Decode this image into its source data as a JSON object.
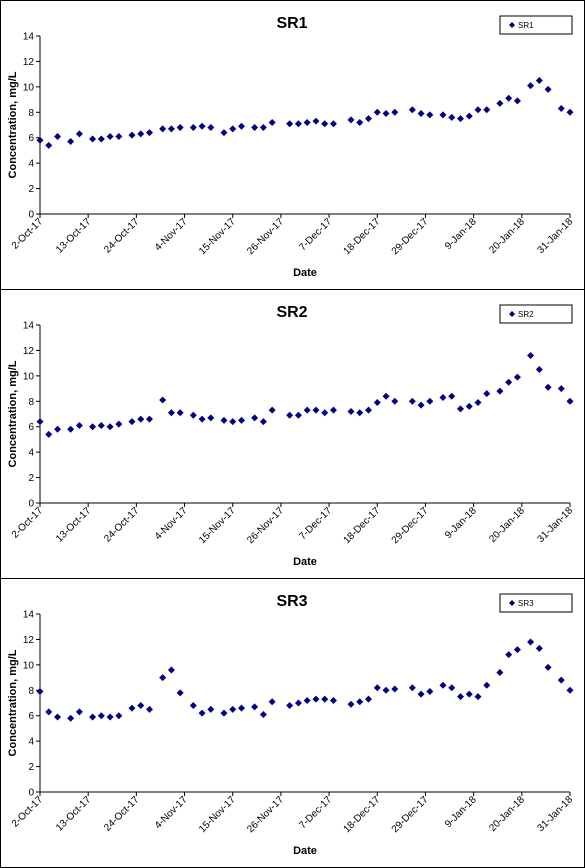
{
  "chart_data": [
    {
      "type": "scatter",
      "title": "SR1",
      "x_label": "Date",
      "y_label": "Concentration, mg/L",
      "x": [
        "2017-10-02",
        "2017-10-04",
        "2017-10-06",
        "2017-10-09",
        "2017-10-11",
        "2017-10-14",
        "2017-10-16",
        "2017-10-18",
        "2017-10-20",
        "2017-10-23",
        "2017-10-25",
        "2017-10-27",
        "2017-10-30",
        "2017-11-01",
        "2017-11-03",
        "2017-11-06",
        "2017-11-08",
        "2017-11-10",
        "2017-11-13",
        "2017-11-15",
        "2017-11-17",
        "2017-11-20",
        "2017-11-22",
        "2017-11-24",
        "2017-11-28",
        "2017-11-30",
        "2017-12-02",
        "2017-12-04",
        "2017-12-06",
        "2017-12-08",
        "2017-12-12",
        "2017-12-14",
        "2017-12-16",
        "2017-12-18",
        "2017-12-20",
        "2017-12-22",
        "2017-12-26",
        "2017-12-28",
        "2017-12-30",
        "2018-01-02",
        "2018-01-04",
        "2018-01-06",
        "2018-01-08",
        "2018-01-10",
        "2018-01-12",
        "2018-01-15",
        "2018-01-17",
        "2018-01-19",
        "2018-01-22",
        "2018-01-24",
        "2018-01-26",
        "2018-01-29",
        "2018-01-31"
      ],
      "series": [
        {
          "name": "SR1",
          "color": "#000080",
          "values": [
            5.8,
            5.4,
            6.1,
            5.7,
            6.3,
            5.9,
            5.9,
            6.1,
            6.1,
            6.2,
            6.3,
            6.4,
            6.7,
            6.7,
            6.8,
            6.8,
            6.9,
            6.8,
            6.4,
            6.7,
            6.9,
            6.8,
            6.8,
            7.2,
            7.1,
            7.1,
            7.2,
            7.3,
            7.1,
            7.1,
            7.4,
            7.2,
            7.5,
            8.0,
            7.9,
            8.0,
            8.2,
            7.9,
            7.8,
            7.8,
            7.6,
            7.5,
            7.7,
            8.2,
            8.2,
            8.7,
            9.1,
            8.9,
            10.1,
            10.5,
            9.8,
            8.3,
            8.0
          ]
        }
      ],
      "xlim": [
        "2017-10-02",
        "2018-01-31"
      ],
      "xticks": [
        {
          "value": "2017-10-02",
          "label": "2-Oct-17"
        },
        {
          "value": "2017-10-13",
          "label": "13-Oct-17"
        },
        {
          "value": "2017-10-24",
          "label": "24-Oct-17"
        },
        {
          "value": "2017-11-04",
          "label": "4-Nov-17"
        },
        {
          "value": "2017-11-15",
          "label": "15-Nov-17"
        },
        {
          "value": "2017-11-26",
          "label": "26-Nov-17"
        },
        {
          "value": "2017-12-07",
          "label": "7-Dec-17"
        },
        {
          "value": "2017-12-18",
          "label": "18-Dec-17"
        },
        {
          "value": "2017-12-29",
          "label": "29-Dec-17"
        },
        {
          "value": "2018-01-09",
          "label": "9-Jan-18"
        },
        {
          "value": "2018-01-20",
          "label": "20-Jan-18"
        },
        {
          "value": "2018-01-31",
          "label": "31-Jan-18"
        }
      ],
      "ylim": [
        0,
        14
      ],
      "yticks": [
        0,
        2,
        4,
        6,
        8,
        10,
        12,
        14
      ],
      "legend": "top-right"
    },
    {
      "type": "scatter",
      "title": "SR2",
      "x_label": "Date",
      "y_label": "Concentration, mg/L",
      "x": [
        "2017-10-02",
        "2017-10-04",
        "2017-10-06",
        "2017-10-09",
        "2017-10-11",
        "2017-10-14",
        "2017-10-16",
        "2017-10-18",
        "2017-10-20",
        "2017-10-23",
        "2017-10-25",
        "2017-10-27",
        "2017-10-30",
        "2017-11-01",
        "2017-11-03",
        "2017-11-06",
        "2017-11-08",
        "2017-11-10",
        "2017-11-13",
        "2017-11-15",
        "2017-11-17",
        "2017-11-20",
        "2017-11-22",
        "2017-11-24",
        "2017-11-28",
        "2017-11-30",
        "2017-12-02",
        "2017-12-04",
        "2017-12-06",
        "2017-12-08",
        "2017-12-12",
        "2017-12-14",
        "2017-12-16",
        "2017-12-18",
        "2017-12-20",
        "2017-12-22",
        "2017-12-26",
        "2017-12-28",
        "2017-12-30",
        "2018-01-02",
        "2018-01-04",
        "2018-01-06",
        "2018-01-08",
        "2018-01-10",
        "2018-01-12",
        "2018-01-15",
        "2018-01-17",
        "2018-01-19",
        "2018-01-22",
        "2018-01-24",
        "2018-01-26",
        "2018-01-29",
        "2018-01-31"
      ],
      "series": [
        {
          "name": "SR2",
          "color": "#000080",
          "values": [
            6.4,
            5.4,
            5.8,
            5.8,
            6.1,
            6.0,
            6.1,
            6.0,
            6.2,
            6.4,
            6.6,
            6.6,
            8.1,
            7.1,
            7.1,
            6.9,
            6.6,
            6.7,
            6.5,
            6.4,
            6.5,
            6.7,
            6.4,
            7.3,
            6.9,
            6.9,
            7.3,
            7.3,
            7.1,
            7.3,
            7.2,
            7.1,
            7.3,
            7.9,
            8.4,
            8.0,
            8.0,
            7.7,
            8.0,
            8.3,
            8.4,
            7.4,
            7.6,
            7.9,
            8.6,
            8.8,
            9.5,
            9.9,
            11.6,
            10.5,
            9.1,
            9.0,
            8.0
          ]
        }
      ],
      "xlim": [
        "2017-10-02",
        "2018-01-31"
      ],
      "xticks": [
        {
          "value": "2017-10-02",
          "label": "2-Oct-17"
        },
        {
          "value": "2017-10-13",
          "label": "13-Oct-17"
        },
        {
          "value": "2017-10-24",
          "label": "24-Oct-17"
        },
        {
          "value": "2017-11-04",
          "label": "4-Nov-17"
        },
        {
          "value": "2017-11-15",
          "label": "15-Nov-17"
        },
        {
          "value": "2017-11-26",
          "label": "26-Nov-17"
        },
        {
          "value": "2017-12-07",
          "label": "7-Dec-17"
        },
        {
          "value": "2017-12-18",
          "label": "18-Dec-17"
        },
        {
          "value": "2017-12-29",
          "label": "29-Dec-17"
        },
        {
          "value": "2018-01-09",
          "label": "9-Jan-18"
        },
        {
          "value": "2018-01-20",
          "label": "20-Jan-18"
        },
        {
          "value": "2018-01-31",
          "label": "31-Jan-18"
        }
      ],
      "ylim": [
        0,
        14
      ],
      "yticks": [
        0,
        2,
        4,
        6,
        8,
        10,
        12,
        14
      ],
      "legend": "top-right"
    },
    {
      "type": "scatter",
      "title": "SR3",
      "x_label": "Date",
      "y_label": "Concentration, mg/L",
      "x": [
        "2017-10-02",
        "2017-10-04",
        "2017-10-06",
        "2017-10-09",
        "2017-10-11",
        "2017-10-14",
        "2017-10-16",
        "2017-10-18",
        "2017-10-20",
        "2017-10-23",
        "2017-10-25",
        "2017-10-27",
        "2017-10-30",
        "2017-11-01",
        "2017-11-03",
        "2017-11-06",
        "2017-11-08",
        "2017-11-10",
        "2017-11-13",
        "2017-11-15",
        "2017-11-17",
        "2017-11-20",
        "2017-11-22",
        "2017-11-24",
        "2017-11-28",
        "2017-11-30",
        "2017-12-02",
        "2017-12-04",
        "2017-12-06",
        "2017-12-08",
        "2017-12-12",
        "2017-12-14",
        "2017-12-16",
        "2017-12-18",
        "2017-12-20",
        "2017-12-22",
        "2017-12-26",
        "2017-12-28",
        "2017-12-30",
        "2018-01-02",
        "2018-01-04",
        "2018-01-06",
        "2018-01-08",
        "2018-01-10",
        "2018-01-12",
        "2018-01-15",
        "2018-01-17",
        "2018-01-19",
        "2018-01-22",
        "2018-01-24",
        "2018-01-26",
        "2018-01-29",
        "2018-01-31"
      ],
      "series": [
        {
          "name": "SR3",
          "color": "#000080",
          "values": [
            7.9,
            6.3,
            5.9,
            5.8,
            6.3,
            5.9,
            6.0,
            5.9,
            6.0,
            6.6,
            6.8,
            6.5,
            9.0,
            9.6,
            7.8,
            6.8,
            6.2,
            6.5,
            6.2,
            6.5,
            6.6,
            6.7,
            6.1,
            7.1,
            6.8,
            7.0,
            7.2,
            7.3,
            7.3,
            7.2,
            6.9,
            7.1,
            7.3,
            8.2,
            8.0,
            8.1,
            8.2,
            7.7,
            7.9,
            8.4,
            8.2,
            7.5,
            7.7,
            7.5,
            8.4,
            9.4,
            10.8,
            11.2,
            11.8,
            11.3,
            9.8,
            8.8,
            8.0
          ]
        }
      ],
      "xlim": [
        "2017-10-02",
        "2018-01-31"
      ],
      "xticks": [
        {
          "value": "2017-10-02",
          "label": "2-Oct-17"
        },
        {
          "value": "2017-10-13",
          "label": "13-Oct-17"
        },
        {
          "value": "2017-10-24",
          "label": "24-Oct-17"
        },
        {
          "value": "2017-11-04",
          "label": "4-Nov-17"
        },
        {
          "value": "2017-11-15",
          "label": "15-Nov-17"
        },
        {
          "value": "2017-11-26",
          "label": "26-Nov-17"
        },
        {
          "value": "2017-12-07",
          "label": "7-Dec-17"
        },
        {
          "value": "2017-12-18",
          "label": "18-Dec-17"
        },
        {
          "value": "2017-12-29",
          "label": "29-Dec-17"
        },
        {
          "value": "2018-01-09",
          "label": "9-Jan-18"
        },
        {
          "value": "2018-01-20",
          "label": "20-Jan-18"
        },
        {
          "value": "2018-01-31",
          "label": "31-Jan-18"
        }
      ],
      "ylim": [
        0,
        14
      ],
      "yticks": [
        0,
        2,
        4,
        6,
        8,
        10,
        12,
        14
      ],
      "legend": "top-right"
    }
  ]
}
